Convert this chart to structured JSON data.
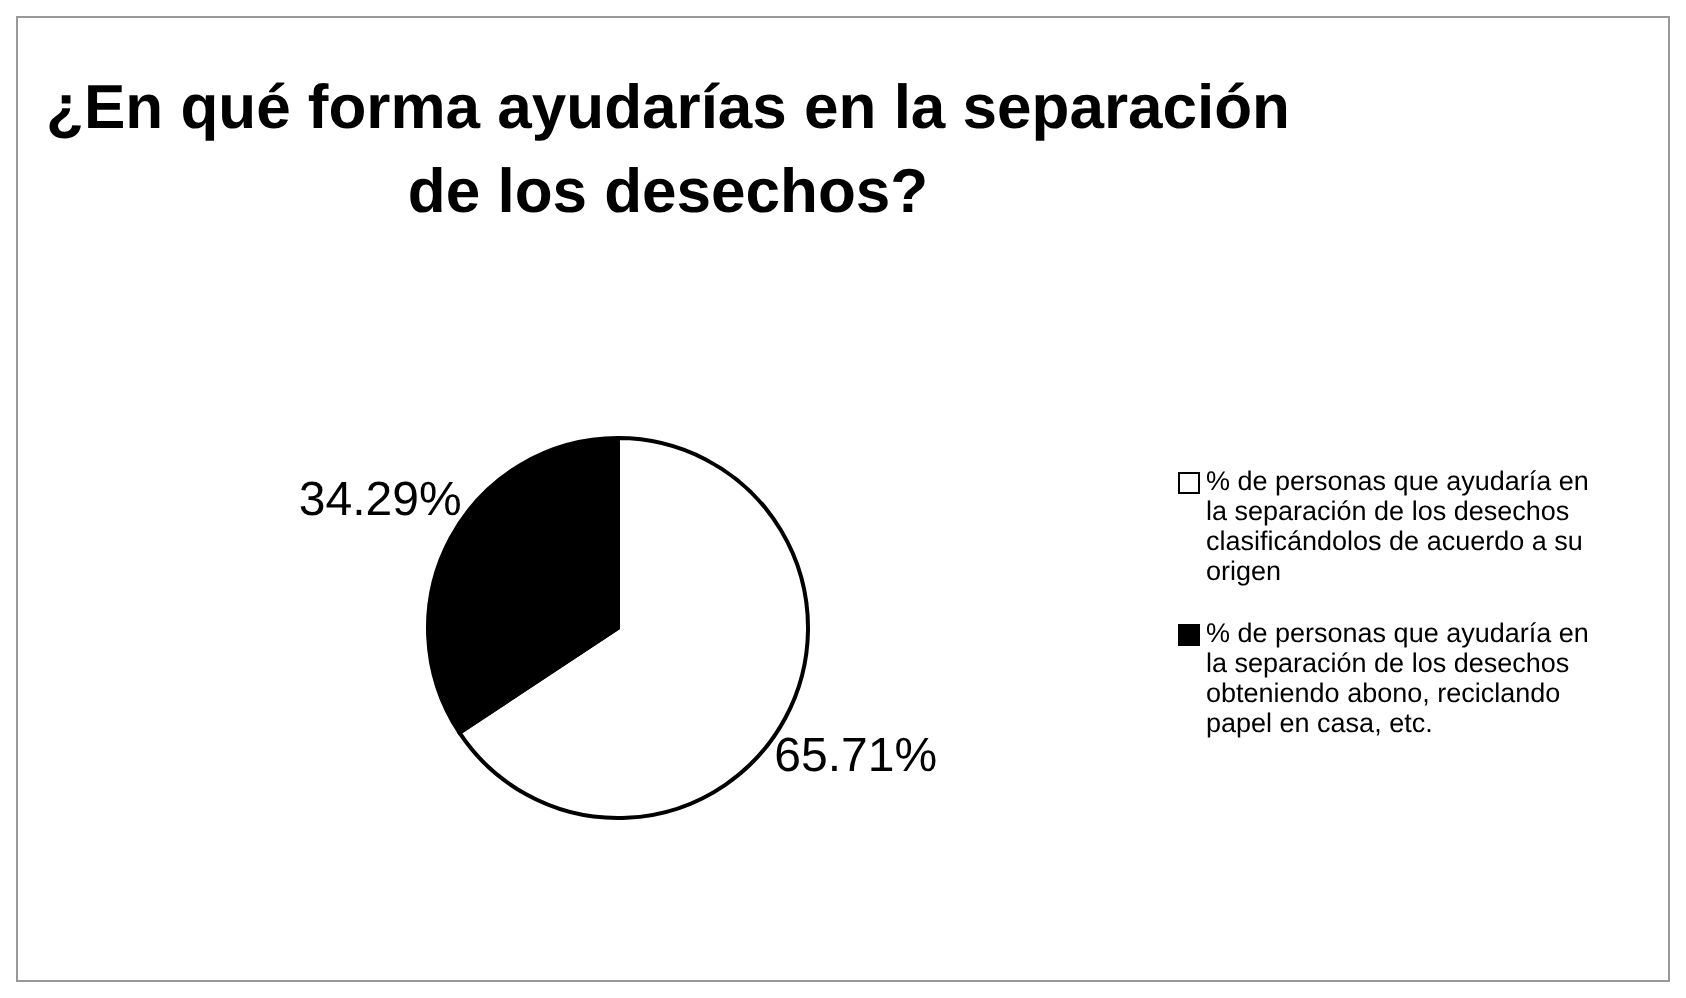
{
  "chart_data": {
    "type": "pie",
    "title": "¿En qué forma ayudarías en la separación de los desechos?",
    "categories": [
      "% de personas que ayudaría en la separación de los desechos clasificándolos de acuerdo a su origen",
      "% de personas que ayudaría en la separación de los desechos obteniendo abono, reciclando papel en casa, etc."
    ],
    "values": [
      65.71,
      34.29
    ],
    "colors": [
      "#ffffff",
      "#000000"
    ],
    "value_labels": [
      "65.71%",
      "34.29%"
    ],
    "legend": "right"
  }
}
